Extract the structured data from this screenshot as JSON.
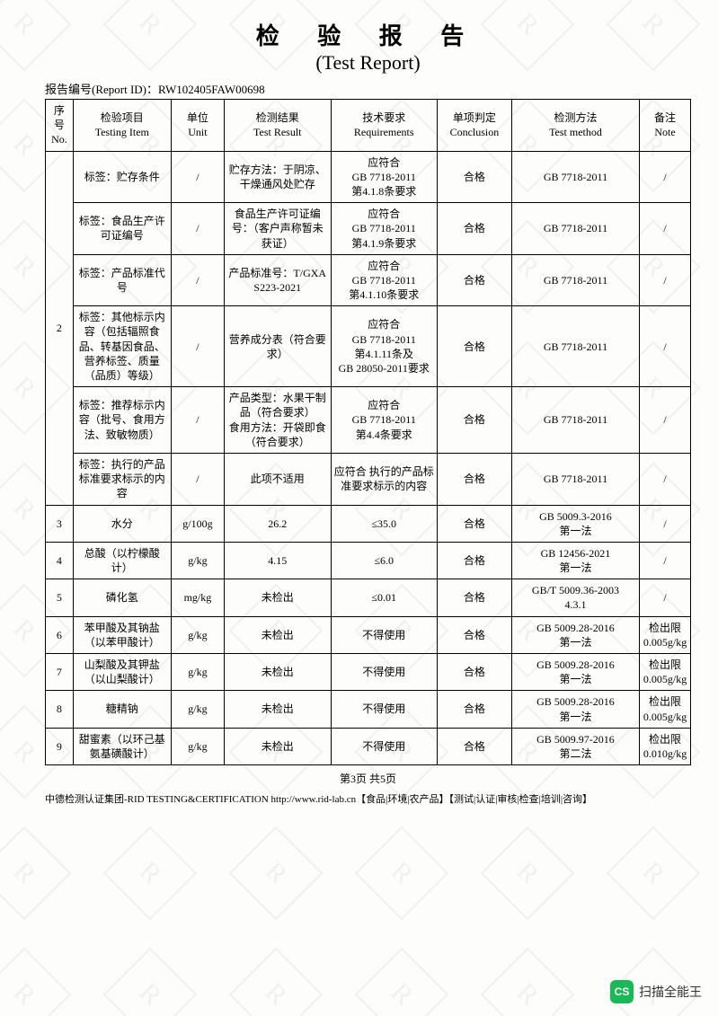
{
  "header": {
    "title_cn": "检 验 报 告",
    "title_en": "(Test Report)",
    "report_id_label": "报告编号(Report ID)：",
    "report_id": "RW102405FAW00698"
  },
  "columns": [
    {
      "line1": "序号",
      "line2": "No."
    },
    {
      "line1": "检验项目",
      "line2": "Testing Item"
    },
    {
      "line1": "单位",
      "line2": "Unit"
    },
    {
      "line1": "检测结果",
      "line2": "Test Result"
    },
    {
      "line1": "技术要求",
      "line2": "Requirements"
    },
    {
      "line1": "单项判定",
      "line2": "Conclusion"
    },
    {
      "line1": "检测方法",
      "line2": "Test method"
    },
    {
      "line1": "备注",
      "line2": "Note"
    }
  ],
  "group2_no": "2",
  "group2_rows": [
    {
      "item": "标签：贮存条件",
      "unit": "/",
      "result": "贮存方法：于阴凉、干燥通风处贮存",
      "req": "应符合\nGB 7718-2011\n第4.1.8条要求",
      "conc": "合格",
      "method": "GB 7718-2011",
      "note": "/"
    },
    {
      "item": "标签：食品生产许可证编号",
      "unit": "/",
      "result": "食品生产许可证编号：（客户声称暂未获证）",
      "req": "应符合\nGB 7718-2011\n第4.1.9条要求",
      "conc": "合格",
      "method": "GB 7718-2011",
      "note": "/"
    },
    {
      "item": "标签：产品标准代号",
      "unit": "/",
      "result": "产品标准号：T/GXAS223-2021",
      "req": "应符合\nGB 7718-2011\n第4.1.10条要求",
      "conc": "合格",
      "method": "GB 7718-2011",
      "note": "/"
    },
    {
      "item": "标签：其他标示内容（包括辐照食品、转基因食品、营养标签、质量（品质）等级）",
      "unit": "/",
      "result": "营养成分表（符合要求）",
      "req": "应符合\nGB 7718-2011\n第4.1.11条及\nGB 28050-2011要求",
      "conc": "合格",
      "method": "GB 7718-2011",
      "note": "/"
    },
    {
      "item": "标签：推荐标示内容（批号、食用方法、致敏物质）",
      "unit": "/",
      "result": "产品类型：水果干制品（符合要求）\n食用方法：开袋即食（符合要求）",
      "req": "应符合\nGB 7718-2011\n第4.4条要求",
      "conc": "合格",
      "method": "GB 7718-2011",
      "note": "/"
    },
    {
      "item": "标签：执行的产品标准要求标示的内容",
      "unit": "/",
      "result": "此项不适用",
      "req": "应符合 执行的产品标准要求标示的内容",
      "conc": "合格",
      "method": "GB 7718-2011",
      "note": "/"
    }
  ],
  "rows": [
    {
      "no": "3",
      "item": "水分",
      "unit": "g/100g",
      "result": "26.2",
      "req": "≤35.0",
      "conc": "合格",
      "method": "GB 5009.3-2016\n第一法",
      "note": "/"
    },
    {
      "no": "4",
      "item": "总酸（以柠檬酸计）",
      "unit": "g/kg",
      "result": "4.15",
      "req": "≤6.0",
      "conc": "合格",
      "method": "GB 12456-2021\n第一法",
      "note": "/"
    },
    {
      "no": "5",
      "item": "磷化氢",
      "unit": "mg/kg",
      "result": "未检出",
      "req": "≤0.01",
      "conc": "合格",
      "method": "GB/T 5009.36-2003\n4.3.1",
      "note": "/"
    },
    {
      "no": "6",
      "item": "苯甲酸及其钠盐（以苯甲酸计）",
      "unit": "g/kg",
      "result": "未检出",
      "req": "不得使用",
      "conc": "合格",
      "method": "GB 5009.28-2016\n第一法",
      "note": "检出限\n0.005g/kg"
    },
    {
      "no": "7",
      "item": "山梨酸及其钾盐（以山梨酸计）",
      "unit": "g/kg",
      "result": "未检出",
      "req": "不得使用",
      "conc": "合格",
      "method": "GB 5009.28-2016\n第一法",
      "note": "检出限\n0.005g/kg"
    },
    {
      "no": "8",
      "item": "糖精钠",
      "unit": "g/kg",
      "result": "未检出",
      "req": "不得使用",
      "conc": "合格",
      "method": "GB 5009.28-2016\n第一法",
      "note": "检出限\n0.005g/kg"
    },
    {
      "no": "9",
      "item": "甜蜜素（以环己基氨基磺酸计）",
      "unit": "g/kg",
      "result": "未检出",
      "req": "不得使用",
      "conc": "合格",
      "method": "GB 5009.97-2016\n第二法",
      "note": "检出限\n0.010g/kg"
    }
  ],
  "footer": {
    "page": "第3页  共5页",
    "org": "中德检测认证集团-RID TESTING&CERTIFICATION  http://www.rid-lab.cn【食品|环境|农产品】【测试|认证|审核|检查|培训|咨询】"
  },
  "scan_badge": {
    "icon": "CS",
    "text": "扫描全能王"
  },
  "colors": {
    "border": "#000000",
    "bg": "#fdfdfb",
    "badge": "#19b955"
  }
}
